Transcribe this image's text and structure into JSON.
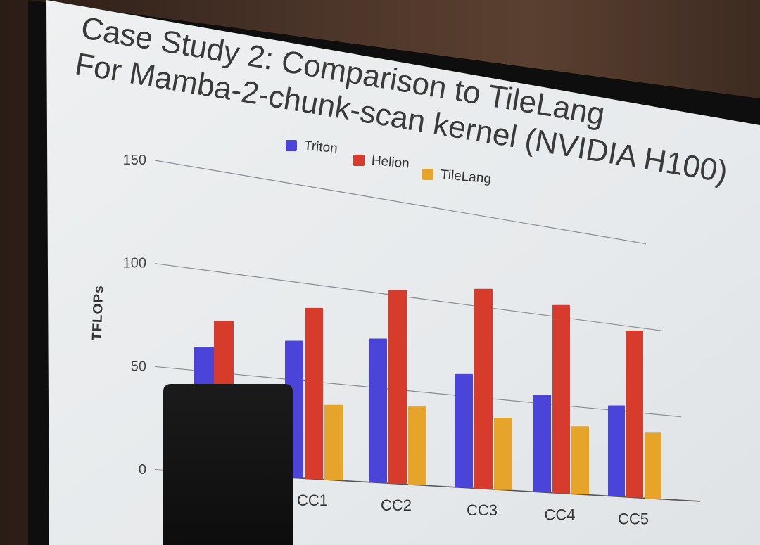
{
  "slide": {
    "title_line1": "Case Study 2: Comparison to TileLang",
    "title_line2": "For Mamba-2-chunk-scan kernel (NVIDIA H100)"
  },
  "chart_data": {
    "type": "bar",
    "categories": [
      "",
      "CC1",
      "CC2",
      "CC3",
      "CC4",
      "CC5"
    ],
    "series": [
      {
        "name": "Triton",
        "color": "#4b44d8",
        "values": [
          62,
          70,
          76,
          62,
          55,
          53
        ]
      },
      {
        "name": "Helion",
        "color": "#d63b2c",
        "values": [
          76,
          88,
          103,
          110,
          107,
          98
        ]
      },
      {
        "name": "TileLang",
        "color": "#e6a52a",
        "values": [
          null,
          39,
          42,
          40,
          39,
          39
        ]
      }
    ],
    "ylabel": "TFLOPs",
    "yticks": [
      0,
      50,
      100,
      150
    ],
    "ylim": [
      0,
      150
    ],
    "legend_position": "top",
    "grid": true
  }
}
